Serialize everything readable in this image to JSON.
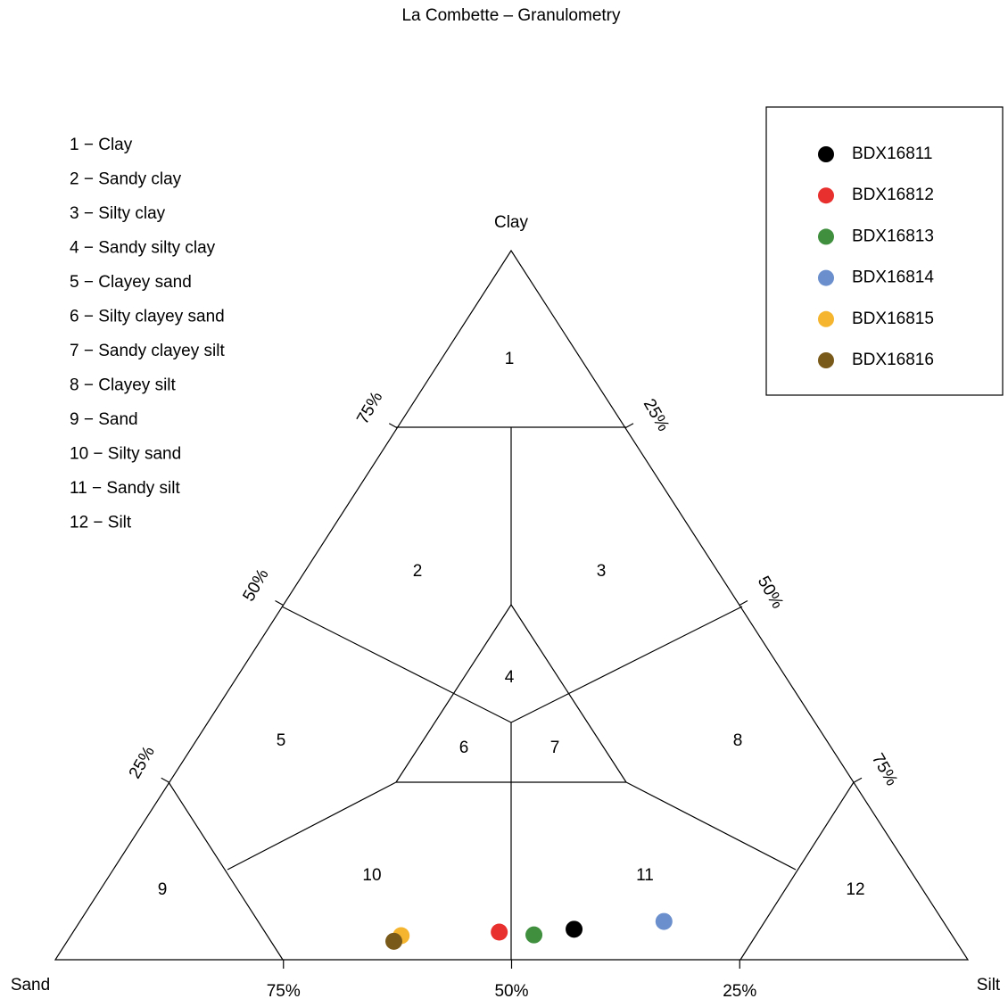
{
  "chart_data": {
    "type": "ternary",
    "title": "La Combette – Granulometry",
    "axes": {
      "sand": "Sand",
      "silt": "Silt",
      "clay": "Clay"
    },
    "sand_ticks": [
      {
        "value": 75,
        "label": "75%"
      },
      {
        "value": 50,
        "label": "50%"
      },
      {
        "value": 25,
        "label": "25%"
      }
    ],
    "clay_ticks": [
      {
        "value": 75,
        "label": "75%"
      },
      {
        "value": 50,
        "label": "50%"
      },
      {
        "value": 25,
        "label": "25%"
      }
    ],
    "silt_ticks": [
      {
        "value": 25,
        "label": "25%"
      },
      {
        "value": 50,
        "label": "50%"
      },
      {
        "value": 75,
        "label": "75%"
      }
    ],
    "classes": [
      "1 − Clay",
      "2 − Sandy clay",
      "3 − Silty clay",
      "4 − Sandy silty clay",
      "5 − Clayey sand",
      "6 − Silty clayey sand",
      "7 − Sandy clayey silt",
      "8 − Clayey silt",
      "9 − Sand",
      "10 − Silty sand",
      "11 − Sandy silt",
      "12 − Silt"
    ],
    "region_labels": [
      "1",
      "2",
      "3",
      "4",
      "5",
      "6",
      "7",
      "8",
      "9",
      "10",
      "11",
      "12"
    ],
    "series": [
      {
        "name": "BDX16811",
        "color": "#000000",
        "sand": 41.0,
        "silt": 54.7,
        "clay": 4.3
      },
      {
        "name": "BDX16812",
        "color": "#e8302e",
        "sand": 49.4,
        "silt": 46.7,
        "clay": 3.9
      },
      {
        "name": "BDX16813",
        "color": "#3f8f3f",
        "sand": 45.8,
        "silt": 50.7,
        "clay": 3.5
      },
      {
        "name": "BDX16814",
        "color": "#6a8fcc",
        "sand": 30.6,
        "silt": 64.0,
        "clay": 5.4
      },
      {
        "name": "BDX16815",
        "color": "#f5b52e",
        "sand": 60.4,
        "silt": 36.2,
        "clay": 3.4
      },
      {
        "name": "BDX16816",
        "color": "#7a5a1a",
        "sand": 61.6,
        "silt": 35.8,
        "clay": 2.6
      }
    ]
  }
}
